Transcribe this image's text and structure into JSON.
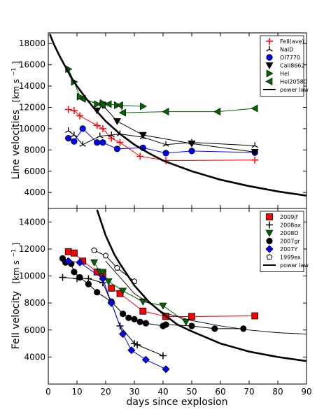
{
  "chart_data": [
    {
      "type": "scatter",
      "panel": "top",
      "title": "",
      "xlabel": "",
      "ylabel": "Line velocities  [km s⁻¹]",
      "ylabel_main": "Line velocities",
      "ylabel_unit": "[km s",
      "ylabel_unit_sup": "−1",
      "ylabel_unit_end": "]",
      "xlim": [
        0,
        90
      ],
      "ylim": [
        2500,
        19000
      ],
      "yticks": [
        4000,
        6000,
        8000,
        10000,
        12000,
        14000,
        16000,
        18000
      ],
      "grid": false,
      "legend_position": "top-right",
      "series": [
        {
          "name": "FeII(ave)",
          "legend": "FeII(ave)",
          "color": "#ff0000",
          "marker": "plus",
          "connect": true,
          "points": [
            [
              7,
              11800
            ],
            [
              9,
              11700
            ],
            [
              11,
              11200
            ],
            [
              17,
              10300
            ],
            [
              19,
              10000
            ],
            [
              22,
              9100
            ],
            [
              25,
              8700
            ],
            [
              32,
              7400
            ],
            [
              41,
              7000
            ],
            [
              72,
              7050
            ]
          ]
        },
        {
          "name": "NaID",
          "legend": "NaID",
          "color": "#000000",
          "marker": "tri",
          "connect": true,
          "points": [
            [
              7,
              9800
            ],
            [
              9,
              9400
            ],
            [
              12,
              8500
            ],
            [
              18,
              9300
            ],
            [
              22,
              9400
            ],
            [
              25,
              9500
            ],
            [
              33,
              9200
            ],
            [
              41,
              8500
            ],
            [
              50,
              8700
            ],
            [
              72,
              8400
            ]
          ]
        },
        {
          "name": "OI7770",
          "legend": "OI7770",
          "color": "#0000ff",
          "marker": "circle",
          "connect": true,
          "points": [
            [
              7,
              9100
            ],
            [
              9,
              8800
            ],
            [
              12,
              10000
            ],
            [
              17,
              8700
            ],
            [
              19,
              8700
            ],
            [
              24,
              8100
            ],
            [
              33,
              8200
            ],
            [
              41,
              7700
            ],
            [
              50,
              7900
            ],
            [
              72,
              7750
            ]
          ]
        },
        {
          "name": "CaII8662",
          "legend": "CaII8662",
          "color": "#000000",
          "marker": "tri_down",
          "connect": true,
          "points": [
            [
              17,
              11700
            ],
            [
              19,
              12200
            ],
            [
              24,
              10700
            ],
            [
              33,
              9400
            ],
            [
              50,
              8600
            ],
            [
              72,
              7800
            ]
          ]
        },
        {
          "name": "HeI",
          "legend": "HeI",
          "color": "#006400",
          "marker": "tri_right",
          "connect": true,
          "points": [
            [
              7,
              15600
            ],
            [
              9,
              14400
            ],
            [
              11,
              13000
            ],
            [
              17,
              12300
            ],
            [
              19,
              12400
            ],
            [
              24,
              12200
            ],
            [
              33,
              12100
            ]
          ]
        },
        {
          "name": "HeI20580",
          "legend": "HeI20580",
          "color": "#006400",
          "marker": "tri_left",
          "connect": true,
          "points": [
            [
              12,
              12800
            ],
            [
              19,
              12200
            ],
            [
              21,
              12300
            ],
            [
              25,
              12200
            ],
            [
              26,
              11500
            ],
            [
              41,
              11600
            ],
            [
              59,
              11600
            ],
            [
              72,
              11900
            ]
          ]
        },
        {
          "name": "power law",
          "legend": "power law",
          "color": "#000000",
          "marker": "none",
          "style": "curve",
          "connect": true,
          "points": [
            [
              0.5,
              18900
            ],
            [
              2,
              17900
            ],
            [
              4,
              16800
            ],
            [
              6,
              15800
            ],
            [
              8,
              14800
            ],
            [
              10,
              14000
            ],
            [
              13,
              12900
            ],
            [
              16,
              11900
            ],
            [
              20,
              10700
            ],
            [
              25,
              9500
            ],
            [
              30,
              8500
            ],
            [
              35,
              7700
            ],
            [
              40,
              7000
            ],
            [
              50,
              6000
            ],
            [
              60,
              5200
            ],
            [
              70,
              4600
            ],
            [
              80,
              4100
            ],
            [
              90,
              3700
            ]
          ]
        }
      ]
    },
    {
      "type": "scatter",
      "panel": "bottom",
      "title": "",
      "xlabel": "days since explosion",
      "ylabel": "FeII velocity  [km s⁻¹]",
      "ylabel_main": "FeII velocity",
      "ylabel_unit": "[km s",
      "ylabel_unit_sup": "−1",
      "ylabel_unit_end": "]",
      "xlim": [
        0,
        90
      ],
      "ylim": [
        2000,
        15000
      ],
      "xticks": [
        0,
        10,
        20,
        30,
        40,
        50,
        60,
        70,
        80,
        90
      ],
      "yticks": [
        4000,
        6000,
        8000,
        10000,
        12000,
        14000
      ],
      "grid": false,
      "legend_position": "top-right",
      "series": [
        {
          "name": "2009jf",
          "legend": "2009jf",
          "color": "#ff0000",
          "marker": "square",
          "connect": true,
          "points": [
            [
              7,
              11800
            ],
            [
              9,
              11700
            ],
            [
              12,
              11100
            ],
            [
              17,
              10300
            ],
            [
              19,
              10200
            ],
            [
              22,
              9100
            ],
            [
              25,
              8700
            ],
            [
              33,
              7400
            ],
            [
              41,
              7000
            ],
            [
              50,
              7000
            ],
            [
              72,
              7050
            ]
          ]
        },
        {
          "name": "2008ax",
          "legend": "2008ax",
          "color": "#000000",
          "marker": "plus",
          "connect": true,
          "points": [
            [
              5,
              9900
            ],
            [
              10,
              9800
            ],
            [
              14,
              9800
            ],
            [
              19,
              9500
            ],
            [
              22,
              8000
            ],
            [
              25,
              6300
            ],
            [
              30,
              5000
            ],
            [
              31,
              4900
            ],
            [
              40,
              4100
            ]
          ]
        },
        {
          "name": "2008D",
          "legend": "2008D",
          "color": "#006400",
          "marker": "tri_down",
          "connect": true,
          "points": [
            [
              16,
              11000
            ],
            [
              18,
              10300
            ],
            [
              19,
              10300
            ],
            [
              21,
              9600
            ],
            [
              26,
              8900
            ],
            [
              33,
              8100
            ],
            [
              40,
              7800
            ],
            [
              48,
              6600
            ]
          ]
        },
        {
          "name": "2007gr",
          "legend": "2007gr",
          "color": "#000000",
          "marker": "circle",
          "connect": true,
          "points": [
            [
              5,
              11300
            ],
            [
              6,
              11000
            ],
            [
              8,
              10900
            ],
            [
              9,
              10300
            ],
            [
              11,
              9900
            ],
            [
              14,
              9400
            ],
            [
              17,
              8800
            ],
            [
              22,
              8100
            ],
            [
              26,
              7200
            ],
            [
              28,
              6900
            ],
            [
              30,
              6800
            ],
            [
              32,
              6600
            ],
            [
              34,
              6500
            ],
            [
              40,
              6300
            ],
            [
              41,
              6400
            ],
            [
              50,
              6300
            ],
            [
              58,
              6100
            ],
            [
              68,
              6100
            ]
          ]
        },
        {
          "name": "2007Y",
          "legend": "2007Y",
          "color": "#0000ff",
          "marker": "diamond",
          "connect": true,
          "points": [
            [
              7,
              11100
            ],
            [
              11,
              11000
            ],
            [
              19,
              9800
            ],
            [
              22,
              8000
            ],
            [
              26,
              5700
            ],
            [
              29,
              4500
            ],
            [
              34,
              3800
            ],
            [
              41,
              3100
            ]
          ]
        },
        {
          "name": "1999ex",
          "legend": "1999ex",
          "color": "#000000",
          "marker": "pentagon",
          "connect": true,
          "points": [
            [
              16,
              11900
            ],
            [
              20,
              11500
            ],
            [
              24,
              10600
            ],
            [
              30,
              9600
            ]
          ]
        },
        {
          "name": "power law",
          "legend": "power law",
          "color": "#000000",
          "marker": "none",
          "style": "curve",
          "connect": true,
          "points": [
            [
              17,
              14900
            ],
            [
              20,
              13000
            ],
            [
              23,
              11600
            ],
            [
              25,
              10900
            ],
            [
              30,
              9300
            ],
            [
              35,
              8100
            ],
            [
              40,
              7200
            ],
            [
              45,
              6400
            ],
            [
              50,
              5900
            ],
            [
              60,
              5000
            ],
            [
              70,
              4400
            ],
            [
              80,
              4000
            ],
            [
              90,
              3700
            ]
          ]
        },
        {
          "name": "power law (reference)",
          "legend": "",
          "color": "#000000",
          "marker": "none",
          "style": "thin",
          "connect": true,
          "points": [
            [
              20,
              11100
            ],
            [
              30,
              8700
            ],
            [
              40,
              7300
            ],
            [
              50,
              6700
            ],
            [
              60,
              6300
            ],
            [
              70,
              6000
            ],
            [
              80,
              5800
            ],
            [
              90,
              5700
            ]
          ]
        }
      ]
    }
  ]
}
